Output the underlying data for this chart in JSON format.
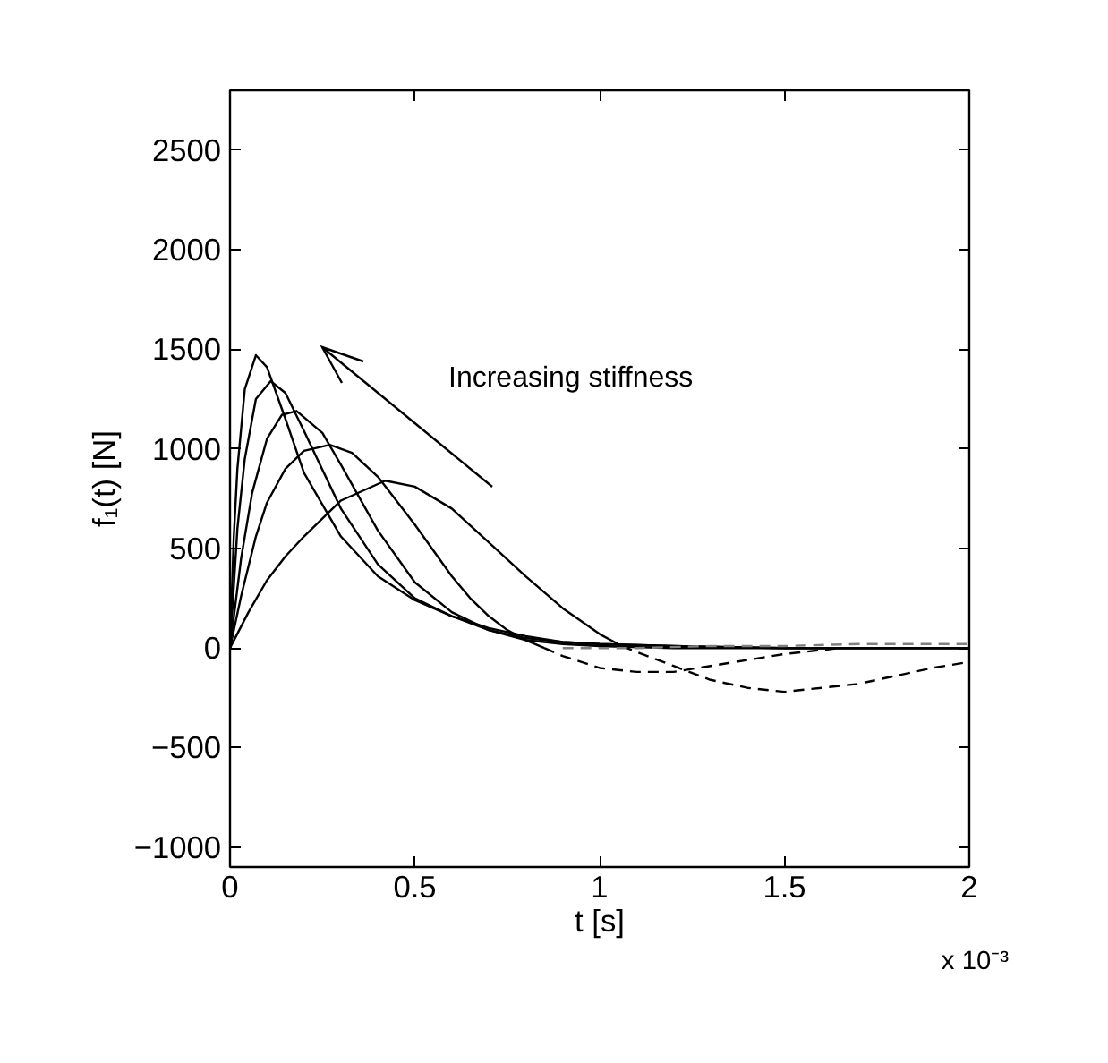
{
  "chart_data": {
    "type": "line",
    "xlabel": "t [s]",
    "ylabel": "f₁(t) [N]",
    "xlim": [
      0,
      2
    ],
    "ylim": [
      -1100,
      2800
    ],
    "xticks": [
      0,
      0.5,
      1,
      1.5,
      2
    ],
    "yticks": [
      -1000,
      -500,
      0,
      500,
      1000,
      1500,
      2000,
      2500
    ],
    "grid": false,
    "marker": "none",
    "annotations": [
      "Increasing stiffness",
      "x 10⁻³"
    ],
    "series": [
      {
        "color": "#000000",
        "line_style": "solid",
        "x": [
          0,
          0.01,
          0.02,
          0.04,
          0.07,
          0.1,
          0.15,
          0.2,
          0.3,
          0.4,
          0.5,
          0.6,
          0.7,
          0.8,
          0.9,
          1.0,
          1.2,
          1.5,
          2.0
        ],
        "values": [
          0,
          550,
          900,
          1300,
          1470,
          1410,
          1150,
          880,
          560,
          360,
          240,
          160,
          100,
          60,
          30,
          20,
          10,
          0,
          0
        ]
      },
      {
        "color": "#000000",
        "line_style": "solid",
        "x": [
          0,
          0.02,
          0.04,
          0.07,
          0.11,
          0.15,
          0.2,
          0.3,
          0.4,
          0.5,
          0.6,
          0.7,
          0.8,
          0.9,
          1.0,
          1.2,
          1.5,
          2.0
        ],
        "values": [
          0,
          600,
          950,
          1250,
          1340,
          1280,
          1090,
          700,
          420,
          250,
          160,
          90,
          50,
          30,
          20,
          10,
          0,
          0
        ]
      },
      {
        "color": "#000000",
        "line_style": "solid",
        "x": [
          0,
          0.03,
          0.06,
          0.1,
          0.14,
          0.18,
          0.25,
          0.3,
          0.4,
          0.5,
          0.6,
          0.7,
          0.8,
          0.9,
          1.0,
          1.2,
          1.5,
          2.0
        ],
        "values": [
          0,
          450,
          780,
          1050,
          1170,
          1190,
          1080,
          920,
          590,
          330,
          180,
          90,
          40,
          20,
          10,
          0,
          0,
          0
        ]
      },
      {
        "color": "#000000",
        "line_style": "solid",
        "x": [
          0,
          0.03,
          0.07,
          0.1,
          0.15,
          0.2,
          0.27,
          0.33,
          0.4,
          0.5,
          0.6,
          0.65,
          0.7,
          0.75,
          0.8,
          0.85
        ],
        "values": [
          0,
          260,
          560,
          730,
          900,
          990,
          1020,
          980,
          860,
          620,
          360,
          250,
          160,
          90,
          40,
          0
        ]
      },
      {
        "color": "#000000",
        "line_style": "solid",
        "x": [
          0,
          0.05,
          0.1,
          0.15,
          0.2,
          0.3,
          0.42,
          0.5,
          0.6,
          0.7,
          0.8,
          0.9,
          1.0,
          1.06
        ],
        "values": [
          0,
          180,
          340,
          460,
          560,
          740,
          840,
          810,
          700,
          530,
          360,
          200,
          70,
          10
        ]
      },
      {
        "color": "#000000",
        "line_style": "dashed",
        "x": [
          0.85,
          0.9,
          1.0,
          1.1,
          1.2,
          1.3,
          1.4,
          1.5,
          1.6,
          1.65
        ],
        "values": [
          0,
          -40,
          -100,
          -120,
          -120,
          -90,
          -60,
          -30,
          -10,
          0
        ]
      },
      {
        "color": "#000000",
        "line_style": "dashed",
        "x": [
          1.06,
          1.1,
          1.2,
          1.3,
          1.4,
          1.5,
          1.6,
          1.7,
          1.8,
          1.9,
          2.0
        ],
        "values": [
          10,
          -20,
          -90,
          -160,
          -200,
          -220,
          -200,
          -180,
          -140,
          -100,
          -70
        ]
      },
      {
        "color": "#808080",
        "line_style": "dashed",
        "x": [
          0.9,
          1.1,
          1.3,
          1.5,
          1.7,
          1.9,
          2.0
        ],
        "values": [
          0,
          0,
          10,
          10,
          20,
          20,
          20
        ]
      }
    ]
  }
}
